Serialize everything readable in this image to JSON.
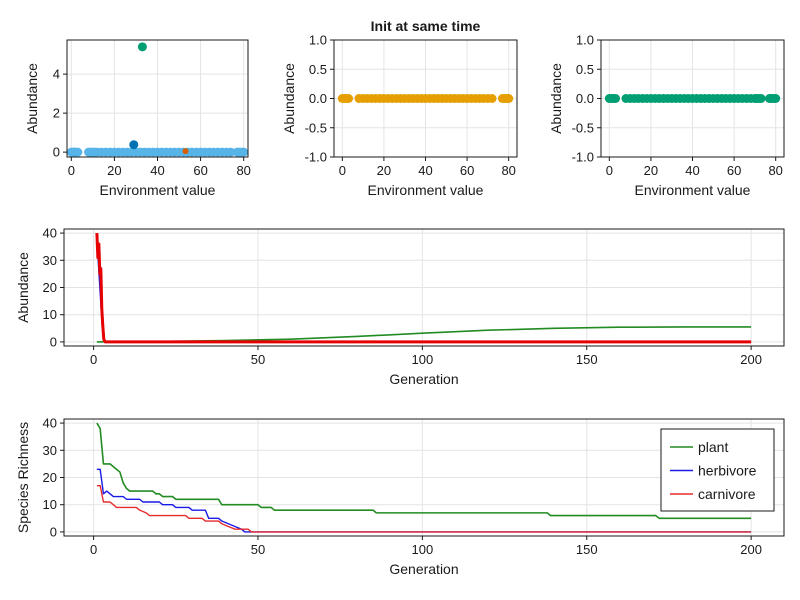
{
  "figure_title": "Init at same time",
  "chart_data": [
    {
      "id": "top-left",
      "type": "scatter",
      "title": "",
      "xlabel": "Environment value",
      "ylabel": "Abundance",
      "xlim": [
        -2,
        82
      ],
      "ylim": [
        -0.25,
        5.75
      ],
      "xticks": [
        0,
        20,
        40,
        60,
        80
      ],
      "yticks": [
        0,
        2,
        4
      ],
      "series": [
        {
          "color": "#56b4e9",
          "marker_size": 4.5,
          "points": [
            [
              0,
              0
            ],
            [
              1,
              0
            ],
            [
              1.5,
              0
            ],
            [
              2,
              0
            ],
            [
              3,
              0
            ],
            [
              8,
              0
            ],
            [
              9,
              0
            ],
            [
              10,
              0
            ],
            [
              11,
              0
            ],
            [
              12,
              0
            ],
            [
              14,
              0
            ],
            [
              16,
              0
            ],
            [
              18,
              0
            ],
            [
              20,
              0
            ],
            [
              22,
              0
            ],
            [
              24,
              0
            ],
            [
              26,
              0
            ],
            [
              28,
              0
            ],
            [
              30,
              0
            ],
            [
              32,
              0
            ],
            [
              34,
              0
            ],
            [
              36,
              0
            ],
            [
              38,
              0
            ],
            [
              40,
              0
            ],
            [
              42,
              0
            ],
            [
              44,
              0
            ],
            [
              46,
              0
            ],
            [
              48,
              0
            ],
            [
              50,
              0
            ],
            [
              52,
              0
            ],
            [
              54,
              0
            ],
            [
              56,
              0
            ],
            [
              58,
              0
            ],
            [
              60,
              0
            ],
            [
              62,
              0
            ],
            [
              64,
              0
            ],
            [
              66,
              0
            ],
            [
              68,
              0
            ],
            [
              70,
              0
            ],
            [
              72,
              0
            ],
            [
              74,
              0
            ],
            [
              77,
              0
            ],
            [
              78,
              0
            ],
            [
              79,
              0
            ],
            [
              80,
              0
            ]
          ]
        },
        {
          "color": "#0072b2",
          "marker_size": 4.5,
          "points": [
            [
              29,
              0.38
            ]
          ]
        },
        {
          "color": "#009e73",
          "marker_size": 4.5,
          "points": [
            [
              33,
              5.4
            ]
          ]
        },
        {
          "color": "#d55e00",
          "marker_size": 3,
          "points": [
            [
              53,
              0.05
            ]
          ]
        }
      ]
    },
    {
      "id": "top-middle",
      "type": "scatter",
      "title": "Init at same time",
      "xlabel": "Environment value",
      "ylabel": "Abundance",
      "xlim": [
        -4,
        84
      ],
      "ylim": [
        -1.0,
        1.0
      ],
      "xticks": [
        0,
        20,
        40,
        60,
        80
      ],
      "yticks": [
        -1.0,
        -0.5,
        0.0,
        0.5,
        1.0
      ],
      "ytick_labels": [
        "-1.0",
        "-0.5",
        "0.0",
        "0.5",
        "1.0"
      ],
      "series": [
        {
          "color": "#e69f00",
          "marker_size": 4.5,
          "points": [
            [
              0,
              0
            ],
            [
              1,
              0
            ],
            [
              2,
              0
            ],
            [
              3,
              0
            ],
            [
              8,
              0
            ],
            [
              10,
              0
            ],
            [
              12,
              0
            ],
            [
              14,
              0
            ],
            [
              16,
              0
            ],
            [
              18,
              0
            ],
            [
              20,
              0
            ],
            [
              22,
              0
            ],
            [
              24,
              0
            ],
            [
              26,
              0
            ],
            [
              28,
              0
            ],
            [
              30,
              0
            ],
            [
              32,
              0
            ],
            [
              34,
              0
            ],
            [
              36,
              0
            ],
            [
              38,
              0
            ],
            [
              40,
              0
            ],
            [
              42,
              0
            ],
            [
              44,
              0
            ],
            [
              46,
              0
            ],
            [
              48,
              0
            ],
            [
              50,
              0
            ],
            [
              52,
              0
            ],
            [
              54,
              0
            ],
            [
              56,
              0
            ],
            [
              58,
              0
            ],
            [
              60,
              0
            ],
            [
              62,
              0
            ],
            [
              64,
              0
            ],
            [
              66,
              0
            ],
            [
              68,
              0
            ],
            [
              70,
              0
            ],
            [
              72,
              0
            ],
            [
              77,
              0
            ],
            [
              78,
              0
            ],
            [
              79,
              0
            ],
            [
              80,
              0
            ]
          ]
        }
      ]
    },
    {
      "id": "top-right",
      "type": "scatter",
      "title": "",
      "xlabel": "Environment value",
      "ylabel": "Abundance",
      "xlim": [
        -4,
        84
      ],
      "ylim": [
        -1.0,
        1.0
      ],
      "xticks": [
        0,
        20,
        40,
        60,
        80
      ],
      "yticks": [
        -1.0,
        -0.5,
        0.0,
        0.5,
        1.0
      ],
      "ytick_labels": [
        "-1.0",
        "-0.5",
        "0.0",
        "0.5",
        "1.0"
      ],
      "series": [
        {
          "color": "#009e73",
          "marker_size": 4.5,
          "points": [
            [
              0,
              0
            ],
            [
              1,
              0
            ],
            [
              2,
              0
            ],
            [
              3,
              0
            ],
            [
              8,
              0
            ],
            [
              10,
              0
            ],
            [
              12,
              0
            ],
            [
              14,
              0
            ],
            [
              16,
              0
            ],
            [
              18,
              0
            ],
            [
              20,
              0
            ],
            [
              22,
              0
            ],
            [
              24,
              0
            ],
            [
              26,
              0
            ],
            [
              28,
              0
            ],
            [
              30,
              0
            ],
            [
              32,
              0
            ],
            [
              34,
              0
            ],
            [
              36,
              0
            ],
            [
              38,
              0
            ],
            [
              40,
              0
            ],
            [
              42,
              0
            ],
            [
              44,
              0
            ],
            [
              46,
              0
            ],
            [
              48,
              0
            ],
            [
              50,
              0
            ],
            [
              52,
              0
            ],
            [
              54,
              0
            ],
            [
              56,
              0
            ],
            [
              58,
              0
            ],
            [
              60,
              0
            ],
            [
              62,
              0
            ],
            [
              64,
              0
            ],
            [
              66,
              0
            ],
            [
              68,
              0
            ],
            [
              70,
              0
            ],
            [
              71,
              0
            ],
            [
              72,
              0
            ],
            [
              73,
              0
            ],
            [
              77,
              0
            ],
            [
              78,
              0
            ],
            [
              79,
              0
            ],
            [
              80,
              0
            ]
          ]
        }
      ]
    },
    {
      "id": "middle",
      "type": "line",
      "title": "",
      "xlabel": "Generation",
      "ylabel": "Abundance",
      "xlim": [
        -9,
        210
      ],
      "ylim": [
        -1.5,
        41.5
      ],
      "xticks": [
        0,
        50,
        100,
        150,
        200
      ],
      "yticks": [
        0,
        10,
        20,
        30,
        40
      ],
      "series": [
        {
          "color": "#228b22",
          "width": 1.6,
          "points": [
            [
              1,
              0
            ],
            [
              5,
              0.1
            ],
            [
              20,
              0.2
            ],
            [
              40,
              0.5
            ],
            [
              60,
              1.0
            ],
            [
              80,
              2.0
            ],
            [
              100,
              3.2
            ],
            [
              120,
              4.3
            ],
            [
              140,
              5.0
            ],
            [
              160,
              5.4
            ],
            [
              180,
              5.5
            ],
            [
              200,
              5.5
            ]
          ]
        },
        {
          "color": "#1a1ae6",
          "width": 1.4,
          "points": [
            [
              1,
              38
            ],
            [
              1.4,
              30
            ],
            [
              1.8,
              22
            ],
            [
              2.2,
              14
            ],
            [
              2.6,
              6
            ],
            [
              3,
              1
            ],
            [
              3.5,
              0
            ],
            [
              200,
              0
            ]
          ]
        },
        {
          "color": "#e60000",
          "width": 3,
          "points": [
            [
              1,
              40
            ],
            [
              1.3,
              31
            ],
            [
              1.6,
              36
            ],
            [
              1.9,
              25
            ],
            [
              2.2,
              27
            ],
            [
              2.5,
              12
            ],
            [
              2.8,
              6
            ],
            [
              3.1,
              1
            ],
            [
              3.5,
              0
            ],
            [
              200,
              0
            ]
          ]
        }
      ]
    },
    {
      "id": "bottom",
      "type": "line",
      "title": "",
      "xlabel": "Generation",
      "ylabel": "Species Richness",
      "xlim": [
        -9,
        210
      ],
      "ylim": [
        -1.5,
        41.5
      ],
      "xticks": [
        0,
        50,
        100,
        150,
        200
      ],
      "yticks": [
        0,
        10,
        20,
        30,
        40
      ],
      "legend_position": "top-right",
      "series": [
        {
          "name": "plant",
          "color": "#228b22",
          "width": 1.6,
          "points": [
            [
              1,
              40
            ],
            [
              2,
              38
            ],
            [
              3,
              25
            ],
            [
              5,
              25
            ],
            [
              6,
              24
            ],
            [
              7,
              23
            ],
            [
              8,
              22
            ],
            [
              9,
              18
            ],
            [
              10,
              16
            ],
            [
              11,
              15
            ],
            [
              18,
              15
            ],
            [
              19,
              14
            ],
            [
              20,
              14
            ],
            [
              21,
              13
            ],
            [
              24,
              13
            ],
            [
              25,
              12
            ],
            [
              38,
              12
            ],
            [
              39,
              10
            ],
            [
              50,
              10
            ],
            [
              51,
              9
            ],
            [
              54,
              9
            ],
            [
              55,
              8
            ],
            [
              85,
              8
            ],
            [
              86,
              7
            ],
            [
              138,
              7
            ],
            [
              139,
              6
            ],
            [
              171,
              6
            ],
            [
              172,
              5
            ],
            [
              200,
              5
            ]
          ]
        },
        {
          "name": "herbivore",
          "color": "#1a1ae6",
          "width": 1.4,
          "points": [
            [
              1,
              23
            ],
            [
              2,
              23
            ],
            [
              3,
              14
            ],
            [
              4,
              15
            ],
            [
              5,
              14
            ],
            [
              6,
              13
            ],
            [
              9,
              13
            ],
            [
              10,
              12
            ],
            [
              14,
              12
            ],
            [
              15,
              11
            ],
            [
              20,
              11
            ],
            [
              21,
              10
            ],
            [
              24,
              10
            ],
            [
              25,
              9
            ],
            [
              29,
              9
            ],
            [
              30,
              8
            ],
            [
              34,
              8
            ],
            [
              35,
              5
            ],
            [
              38,
              5
            ],
            [
              39,
              4
            ],
            [
              41,
              3
            ],
            [
              43,
              2
            ],
            [
              45,
              1
            ],
            [
              46,
              0
            ],
            [
              200,
              0
            ]
          ]
        },
        {
          "name": "carnivore",
          "color": "#e62b2b",
          "width": 1.4,
          "points": [
            [
              1,
              17
            ],
            [
              2,
              17
            ],
            [
              3,
              11
            ],
            [
              5,
              11
            ],
            [
              6,
              10
            ],
            [
              7,
              9
            ],
            [
              13,
              9
            ],
            [
              14,
              8
            ],
            [
              16,
              7
            ],
            [
              17,
              6
            ],
            [
              28,
              6
            ],
            [
              29,
              5
            ],
            [
              33,
              5
            ],
            [
              34,
              4
            ],
            [
              38,
              4
            ],
            [
              39,
              3
            ],
            [
              41,
              2
            ],
            [
              43,
              1
            ],
            [
              47,
              1
            ],
            [
              48,
              0
            ],
            [
              200,
              0
            ]
          ]
        }
      ]
    }
  ]
}
